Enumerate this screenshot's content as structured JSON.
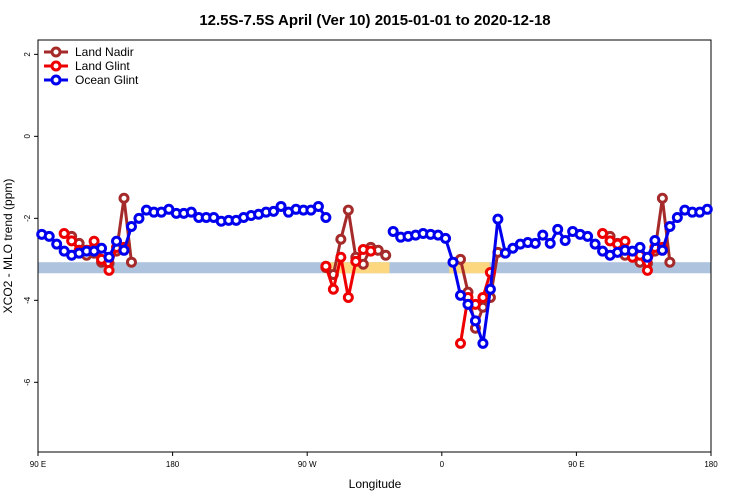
{
  "chart_data": {
    "type": "line",
    "title": "12.5S-7.5S April (Ver 10)   2015-01-01 to 2020-12-18",
    "x_label": "Longitude",
    "y_label": "XCO2 - MLO trend (ppm)",
    "xlim": [
      90,
      540
    ],
    "ylim": [
      -7.7,
      2.35
    ],
    "xticks": [
      {
        "value": 90,
        "label": "90 E"
      },
      {
        "value": 180,
        "label": "180"
      },
      {
        "value": 270,
        "label": "90 W"
      },
      {
        "value": 360,
        "label": "0"
      },
      {
        "value": 450,
        "label": "90 E"
      },
      {
        "value": 540,
        "label": "180"
      }
    ],
    "yticks": [
      2,
      0,
      -2,
      -4,
      -6
    ],
    "legend": "top-left",
    "reference_band": {
      "range": [
        -3.34,
        -3.07
      ],
      "color": "#aec3de"
    },
    "highlight_bands": {
      "ranges": [
        [
          281,
          325
        ],
        [
          365,
          392
        ]
      ],
      "color": "#fcd77f"
    },
    "x": [
      92.5,
      97.5,
      102.5,
      107.5,
      112.5,
      117.5,
      122.5,
      127.5,
      132.5,
      137.5,
      142.5,
      147.5,
      152.5,
      157.5,
      162.5,
      167.5,
      172.5,
      177.5,
      182.5,
      187.5,
      192.5,
      197.5,
      202.5,
      207.5,
      212.5,
      217.5,
      222.5,
      227.5,
      232.5,
      237.5,
      242.5,
      247.5,
      252.5,
      257.5,
      262.5,
      267.5,
      272.5,
      277.5,
      282.5,
      287.5,
      292.5,
      297.5,
      302.5,
      307.5,
      312.5,
      317.5,
      322.5,
      327.5,
      332.5,
      337.5,
      342.5,
      347.5,
      352.5,
      357.5,
      362.5,
      367.5,
      372.5,
      377.5,
      382.5,
      387.5,
      392.5,
      397.5,
      402.5,
      407.5,
      412.5,
      417.5,
      422.5,
      427.5,
      432.5,
      437.5,
      442.5,
      447.5,
      452.5,
      457.5,
      462.5,
      467.5,
      472.5,
      477.5,
      482.5,
      487.5,
      492.5,
      497.5,
      502.5,
      507.5,
      512.5,
      517.5,
      522.5,
      527.5,
      532.5,
      537.5
    ],
    "series": [
      {
        "name": "Land Nadir",
        "color": "#a52a2a",
        "values": [
          null,
          null,
          null,
          null,
          -2.44,
          -2.61,
          -2.9,
          -2.85,
          -3.07,
          -3.1,
          -2.8,
          -1.51,
          -3.07,
          null,
          null,
          null,
          null,
          null,
          null,
          null,
          null,
          null,
          null,
          null,
          null,
          null,
          null,
          null,
          null,
          null,
          null,
          null,
          null,
          null,
          null,
          null,
          null,
          null,
          -3.2,
          -3.37,
          -2.51,
          -1.8,
          -2.95,
          -3.12,
          -2.71,
          -2.78,
          -2.9,
          null,
          null,
          null,
          null,
          null,
          null,
          null,
          null,
          null,
          -3.0,
          -3.8,
          -4.68,
          -4.17,
          -3.93,
          -2.83,
          null,
          null,
          null,
          null,
          null,
          null,
          null,
          null,
          null,
          null,
          null,
          null,
          null,
          null,
          -2.44,
          -2.61,
          -2.9,
          -2.85,
          -3.07,
          -3.1,
          -2.8,
          -1.51,
          -3.07,
          null,
          null,
          null,
          null,
          null
        ]
      },
      {
        "name": "Land Glint",
        "color": "#ee0000",
        "values": [
          null,
          null,
          null,
          -2.37,
          -2.55,
          -2.78,
          -2.78,
          -2.56,
          -3.0,
          -3.27,
          -2.71,
          -2.71,
          null,
          null,
          null,
          null,
          null,
          null,
          null,
          null,
          null,
          null,
          null,
          null,
          null,
          null,
          null,
          null,
          null,
          null,
          null,
          null,
          null,
          null,
          null,
          null,
          null,
          null,
          -3.17,
          -3.73,
          -2.95,
          -3.93,
          -3.05,
          -2.76,
          -2.8,
          null,
          null,
          null,
          null,
          null,
          null,
          null,
          null,
          null,
          null,
          null,
          -5.05,
          -3.93,
          -4.1,
          -3.93,
          -3.32,
          null,
          null,
          null,
          null,
          null,
          null,
          null,
          null,
          null,
          null,
          null,
          null,
          null,
          null,
          -2.37,
          -2.55,
          -2.63,
          -2.56,
          -2.95,
          -2.9,
          -3.27,
          -2.71,
          -2.71,
          null,
          null,
          null,
          null,
          null,
          null
        ]
      },
      {
        "name": "Ocean Glint",
        "color": "#0000ee",
        "values": [
          -2.39,
          -2.44,
          -2.63,
          -2.8,
          -2.9,
          -2.85,
          -2.8,
          -2.8,
          -2.73,
          -2.95,
          -2.56,
          -2.78,
          -2.2,
          -2.0,
          -1.8,
          -1.85,
          -1.85,
          -1.78,
          -1.88,
          -1.88,
          -1.85,
          -1.98,
          -1.98,
          -1.98,
          -2.07,
          -2.05,
          -2.05,
          -1.98,
          -1.93,
          -1.9,
          -1.85,
          -1.83,
          -1.71,
          -1.85,
          -1.78,
          -1.8,
          -1.8,
          -1.71,
          -1.98,
          null,
          null,
          null,
          null,
          null,
          null,
          null,
          null,
          -2.32,
          -2.46,
          -2.44,
          -2.41,
          -2.37,
          -2.39,
          -2.41,
          -2.49,
          -3.07,
          -3.88,
          -4.1,
          -4.5,
          -5.05,
          -3.73,
          -2.02,
          -2.85,
          -2.73,
          -2.63,
          -2.59,
          -2.61,
          -2.41,
          -2.61,
          -2.27,
          -2.54,
          -2.32,
          -2.39,
          -2.44,
          -2.63,
          -2.8,
          -2.9,
          -2.83,
          -2.78,
          -2.8,
          -2.71,
          -2.95,
          -2.54,
          -2.78,
          -2.2,
          -1.98,
          -1.8,
          -1.85,
          -1.85,
          -1.78
        ]
      }
    ]
  }
}
